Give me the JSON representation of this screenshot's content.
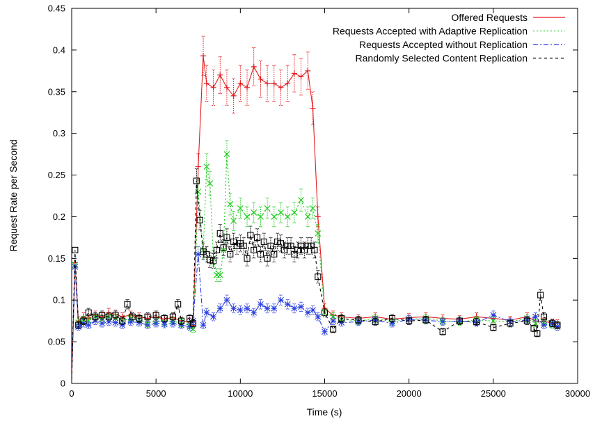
{
  "chart_data": {
    "type": "line",
    "title": "",
    "xlabel": "Time (s)",
    "ylabel": "Request Rate per Second",
    "xlim": [
      0,
      30000
    ],
    "ylim": [
      0,
      0.45
    ],
    "xticks": [
      0,
      5000,
      10000,
      15000,
      20000,
      25000,
      30000
    ],
    "yticks": [
      0,
      0.05,
      0.1,
      0.15,
      0.2,
      0.25,
      0.3,
      0.35,
      0.4,
      0.45
    ],
    "xtick_labels": [
      "0",
      "5000",
      "10000",
      "15000",
      "20000",
      "25000",
      "30000"
    ],
    "ytick_labels": [
      "0",
      "0.05",
      "0.1",
      "0.15",
      "0.2",
      "0.25",
      "0.3",
      "0.35",
      "0.4",
      "0.45"
    ],
    "grid": false,
    "legend_position": "top-right",
    "error_bars": true,
    "series": [
      {
        "name": "Offered Requests",
        "color": "#e41a1c",
        "line_style": "solid",
        "marker": "plus",
        "x": [
          0,
          200,
          400,
          700,
          1000,
          1400,
          1800,
          2200,
          2600,
          3000,
          3500,
          4000,
          4500,
          5000,
          5500,
          6000,
          6500,
          7000,
          7200,
          7500,
          7800,
          8000,
          8400,
          8800,
          9200,
          9600,
          10000,
          10400,
          10800,
          11200,
          11600,
          12000,
          12400,
          12800,
          13200,
          13600,
          14000,
          14300,
          14600,
          15000,
          15500,
          16000,
          17000,
          18000,
          19000,
          20000,
          21000,
          22000,
          23000,
          24000,
          25000,
          26000,
          27000,
          27500,
          28000,
          28500,
          28800
        ],
        "y": [
          0.005,
          0.145,
          0.075,
          0.08,
          0.078,
          0.082,
          0.08,
          0.085,
          0.083,
          0.08,
          0.082,
          0.08,
          0.078,
          0.08,
          0.077,
          0.079,
          0.075,
          0.074,
          0.07,
          0.26,
          0.393,
          0.36,
          0.355,
          0.37,
          0.355,
          0.345,
          0.36,
          0.355,
          0.38,
          0.365,
          0.36,
          0.36,
          0.355,
          0.36,
          0.372,
          0.368,
          0.375,
          0.33,
          0.2,
          0.09,
          0.082,
          0.08,
          0.078,
          0.08,
          0.077,
          0.079,
          0.08,
          0.078,
          0.077,
          0.08,
          0.078,
          0.076,
          0.08,
          0.075,
          0.074,
          0.073,
          0.072
        ]
      },
      {
        "name": "Requests Accepted with Adaptive Replication",
        "color": "#22cc22",
        "line_style": "dotted",
        "marker": "x",
        "x": [
          0,
          200,
          400,
          700,
          1000,
          1400,
          1800,
          2200,
          2600,
          3000,
          3500,
          4000,
          4500,
          5000,
          5500,
          6000,
          6500,
          7000,
          7200,
          7500,
          7800,
          8000,
          8200,
          8400,
          8600,
          8800,
          9000,
          9200,
          9400,
          9600,
          10000,
          10400,
          10800,
          11200,
          11600,
          12000,
          12400,
          12800,
          13200,
          13600,
          14000,
          14300,
          14600,
          15000,
          15500,
          16000,
          17000,
          18000,
          19000,
          20000,
          21000,
          22000,
          23000,
          24000,
          25000,
          26000,
          27000,
          27500,
          28000,
          28500,
          28800
        ],
        "y": [
          0.005,
          0.142,
          0.073,
          0.076,
          0.075,
          0.08,
          0.077,
          0.08,
          0.078,
          0.075,
          0.078,
          0.076,
          0.072,
          0.075,
          0.073,
          0.075,
          0.072,
          0.07,
          0.065,
          0.23,
          0.16,
          0.26,
          0.24,
          0.15,
          0.13,
          0.13,
          0.16,
          0.275,
          0.215,
          0.195,
          0.21,
          0.2,
          0.205,
          0.2,
          0.21,
          0.2,
          0.205,
          0.2,
          0.205,
          0.22,
          0.2,
          0.21,
          0.18,
          0.085,
          0.08,
          0.077,
          0.075,
          0.078,
          0.074,
          0.077,
          0.078,
          0.075,
          0.074,
          0.076,
          0.075,
          0.074,
          0.078,
          0.072,
          0.073,
          0.07,
          0.068
        ]
      },
      {
        "name": "Requests Accepted without Replication",
        "color": "#2a3fe0",
        "line_style": "dashdot",
        "marker": "star",
        "x": [
          0,
          200,
          400,
          700,
          1000,
          1400,
          1800,
          2200,
          2600,
          3000,
          3500,
          4000,
          4500,
          5000,
          5500,
          6000,
          6500,
          7000,
          7200,
          7500,
          7800,
          8000,
          8400,
          8800,
          9200,
          9600,
          10000,
          10400,
          10800,
          11200,
          11600,
          12000,
          12400,
          12800,
          13200,
          13600,
          14000,
          14300,
          14600,
          15000,
          15500,
          16000,
          17000,
          18000,
          19000,
          20000,
          21000,
          22000,
          23000,
          24000,
          25000,
          26000,
          27000,
          27500,
          28000,
          28500,
          28800
        ],
        "y": [
          0.005,
          0.14,
          0.068,
          0.072,
          0.07,
          0.075,
          0.072,
          0.074,
          0.073,
          0.07,
          0.074,
          0.073,
          0.07,
          0.072,
          0.071,
          0.072,
          0.07,
          0.068,
          0.075,
          0.155,
          0.07,
          0.085,
          0.08,
          0.09,
          0.1,
          0.09,
          0.088,
          0.09,
          0.085,
          0.095,
          0.09,
          0.09,
          0.1,
          0.095,
          0.09,
          0.092,
          0.085,
          0.088,
          0.08,
          0.062,
          0.075,
          0.073,
          0.074,
          0.076,
          0.072,
          0.077,
          0.076,
          0.074,
          0.075,
          0.073,
          0.082,
          0.074,
          0.076,
          0.08,
          0.07,
          0.072,
          0.068
        ]
      },
      {
        "name": "Randomly Selected Content Replication",
        "color": "#000000",
        "line_style": "dashed",
        "marker": "square",
        "x": [
          0,
          200,
          400,
          700,
          1000,
          1400,
          1800,
          2200,
          2600,
          3000,
          3300,
          3600,
          4000,
          4500,
          5000,
          5500,
          6000,
          6300,
          6500,
          7000,
          7200,
          7400,
          7600,
          7800,
          8000,
          8200,
          8400,
          8600,
          8800,
          9000,
          9200,
          9400,
          9600,
          9800,
          10000,
          10200,
          10400,
          10600,
          10800,
          11000,
          11200,
          11400,
          11600,
          11800,
          12000,
          12200,
          12400,
          12600,
          12800,
          13000,
          13200,
          13400,
          13600,
          13800,
          14000,
          14200,
          14400,
          14600,
          15000,
          15500,
          16000,
          17000,
          18000,
          19000,
          20000,
          21000,
          22000,
          23000,
          24000,
          25000,
          26000,
          27000,
          27400,
          27600,
          27800,
          28000,
          28500,
          28800
        ],
        "y": [
          0.005,
          0.16,
          0.07,
          0.075,
          0.085,
          0.08,
          0.082,
          0.08,
          0.082,
          0.075,
          0.095,
          0.08,
          0.078,
          0.08,
          0.082,
          0.078,
          0.08,
          0.095,
          0.075,
          0.078,
          0.072,
          0.243,
          0.196,
          0.158,
          0.155,
          0.148,
          0.147,
          0.16,
          0.18,
          0.163,
          0.175,
          0.155,
          0.17,
          0.165,
          0.168,
          0.165,
          0.15,
          0.178,
          0.16,
          0.175,
          0.155,
          0.17,
          0.15,
          0.165,
          0.155,
          0.17,
          0.168,
          0.16,
          0.165,
          0.165,
          0.155,
          0.16,
          0.165,
          0.16,
          0.165,
          0.165,
          0.16,
          0.128,
          0.085,
          0.065,
          0.078,
          0.076,
          0.074,
          0.078,
          0.075,
          0.076,
          0.062,
          0.075,
          0.074,
          0.067,
          0.072,
          0.075,
          0.066,
          0.06,
          0.106,
          0.08,
          0.072,
          0.07
        ]
      }
    ]
  }
}
